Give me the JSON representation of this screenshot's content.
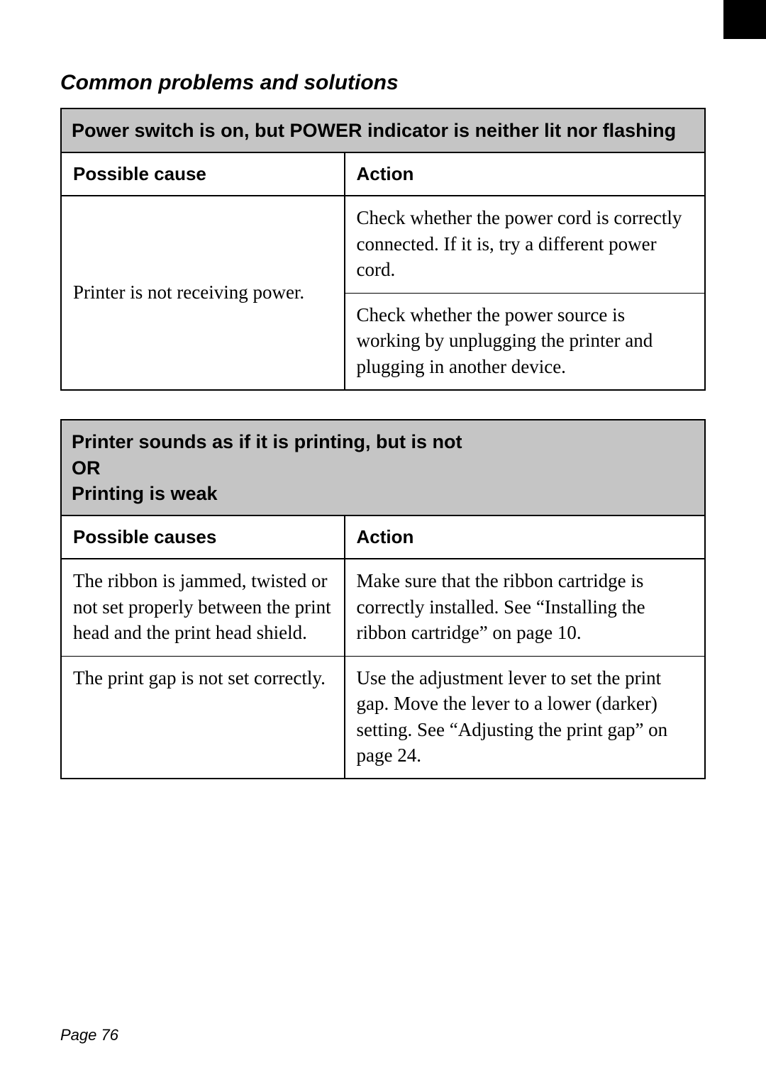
{
  "sectionTitle": "Common problems and solutions",
  "table1": {
    "problemHeader": "Power switch is on, but POWER indicator is neither lit nor flashing",
    "col1Header": "Possible cause",
    "col2Header": "Action",
    "cause1": "Printer is not receiving power.",
    "action1a": "Check whether the power cord is correctly connected. If it is, try a different power cord.",
    "action1b": "Check whether the power source is working by unplugging the printer and plugging in another device."
  },
  "table2": {
    "problemHeaderLine1": "Printer sounds as if it is printing, but is not",
    "problemHeaderLine2": "OR",
    "problemHeaderLine3": "Printing is weak",
    "col1Header": "Possible causes",
    "col2Header": "Action",
    "cause1": "The ribbon is jammed, twisted or not set properly between the print head and the print head shield.",
    "action1": "Make sure that the ribbon cartridge is correctly installed. See “Installing the ribbon cartridge” on page 10.",
    "cause2": "The print gap is not set correctly.",
    "action2": "Use the adjustment lever to set the print gap. Move the lever to a lower (darker) setting. See “Adjusting the print gap” on page 24."
  },
  "pageNumber": "Page 76"
}
